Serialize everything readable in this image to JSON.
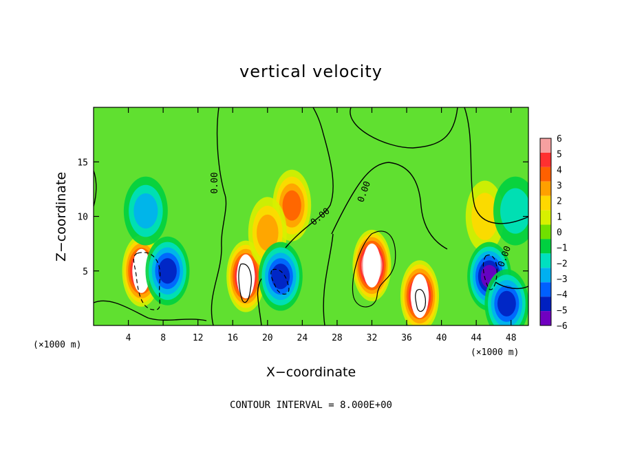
{
  "chart_data": {
    "type": "heatmap",
    "title": "vertical velocity",
    "xlabel": "X−coordinate",
    "ylabel": "Z−coordinate",
    "x_unit": "(×1000 m)",
    "y_unit": "(×1000 m)",
    "x_ticks": [
      4,
      8,
      12,
      16,
      20,
      24,
      28,
      32,
      36,
      40,
      44,
      48
    ],
    "y_ticks": [
      5,
      10,
      15
    ],
    "xlim": [
      0,
      50
    ],
    "ylim": [
      0,
      20
    ],
    "grid": false,
    "colorbar": {
      "labels": [
        "6",
        "5",
        "4",
        "3",
        "2",
        "1",
        "0",
        "−1",
        "−2",
        "−3",
        "−4",
        "−5",
        "−6"
      ],
      "range": [
        -6,
        6
      ],
      "colors_high_to_low": [
        "#f5a0a0",
        "#ff3030",
        "#ff6000",
        "#ffa000",
        "#ffd800",
        "#d8f000",
        "#70e000",
        "#00d040",
        "#00e0c0",
        "#00b0f0",
        "#0060ff",
        "#0020c0",
        "#7000c0"
      ],
      "background": "#60e030"
    },
    "contour_labels": [
      "0.00",
      "0.00",
      "0.00",
      "0.00"
    ],
    "contour_interval_text": "CONTOUR INTERVAL = 8.000E+00",
    "features": [
      {
        "kind": "updraft",
        "x": 5.5,
        "z": 5.0,
        "value": 7
      },
      {
        "kind": "updraft",
        "x": 17.5,
        "z": 4.5,
        "value": 7
      },
      {
        "kind": "updraft",
        "x": 32.0,
        "z": 5.5,
        "value": 8
      },
      {
        "kind": "updraft",
        "x": 37.5,
        "z": 2.7,
        "value": 7
      },
      {
        "kind": "updraft",
        "x": 22.8,
        "z": 11.0,
        "value": 4
      },
      {
        "kind": "updraft",
        "x": 20.0,
        "z": 8.5,
        "value": 3
      },
      {
        "kind": "updraft",
        "x": 45.0,
        "z": 10.0,
        "value": 2
      },
      {
        "kind": "downdraft",
        "x": 6.0,
        "z": 10.5,
        "value": -3
      },
      {
        "kind": "downdraft",
        "x": 8.5,
        "z": 5.0,
        "value": -5
      },
      {
        "kind": "downdraft",
        "x": 21.5,
        "z": 4.5,
        "value": -5
      },
      {
        "kind": "downdraft",
        "x": 45.5,
        "z": 4.5,
        "value": -6
      },
      {
        "kind": "downdraft",
        "x": 47.5,
        "z": 2.0,
        "value": -5
      },
      {
        "kind": "downdraft",
        "x": 48.5,
        "z": 10.5,
        "value": -1.5
      }
    ]
  }
}
